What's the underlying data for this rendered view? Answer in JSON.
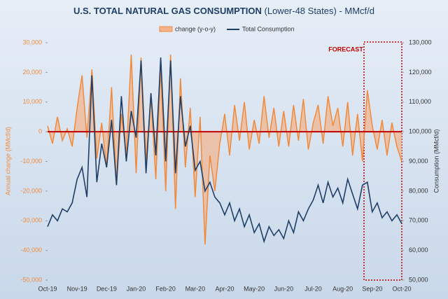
{
  "chart_data": {
    "type": "line",
    "title": "U.S. TOTAL  NATURAL GAS CONSUMPTION",
    "subtitle": "(Lower-48 States) - MMcf/d",
    "ylabel": "Annual change (MMcf/d)",
    "y2label": "Consumption (MMcf/d)",
    "annotation": "FORECAST",
    "categories": [
      "Oct-19",
      null,
      null,
      null,
      null,
      null,
      "Nov-19",
      null,
      null,
      null,
      null,
      null,
      "Dec-19",
      null,
      null,
      null,
      null,
      null,
      "Jan-20",
      null,
      null,
      null,
      null,
      null,
      "Feb-20",
      null,
      null,
      null,
      null,
      null,
      "Mar-20",
      null,
      null,
      null,
      null,
      null,
      "Apr-20",
      null,
      null,
      null,
      null,
      null,
      "May-20",
      null,
      null,
      null,
      null,
      null,
      "Jun-20",
      null,
      null,
      null,
      null,
      null,
      "Jul-20",
      null,
      null,
      null,
      null,
      null,
      "Aug-20",
      null,
      null,
      null,
      null,
      null,
      "Sep-20",
      null,
      null,
      null,
      null,
      null,
      "Oct-20"
    ],
    "series": [
      {
        "name": "change (y-o-y)",
        "color": "#f08a3c",
        "fill": "#f2b48a",
        "axis": "y",
        "values": [
          2000,
          -4000,
          5000,
          -3000,
          1000,
          -5000,
          8000,
          19000,
          -2000,
          21000,
          -9000,
          3000,
          -12000,
          15000,
          -18000,
          6000,
          -8000,
          26000,
          -14000,
          25000,
          -10000,
          12000,
          -16000,
          22000,
          -20000,
          26000,
          -26000,
          18000,
          -12000,
          8000,
          -22000,
          5000,
          -38000,
          -8000,
          -20000,
          -4000,
          6000,
          -8000,
          9000,
          -3000,
          10000,
          -6000,
          4000,
          -4000,
          12000,
          -2000,
          8000,
          -5000,
          7000,
          -5000,
          9000,
          -3000,
          11000,
          -6000,
          3000,
          9000,
          -4000,
          12000,
          2000,
          8000,
          -5000,
          10000,
          -8000,
          6000,
          -10000,
          14000,
          2000,
          -6000,
          4000,
          -8000,
          3000,
          -5000,
          -10000
        ]
      },
      {
        "name": "Total Consumption",
        "color": "#1f3f66",
        "axis": "y2",
        "values": [
          68000,
          72000,
          70000,
          74000,
          73000,
          76000,
          84000,
          88000,
          78000,
          119000,
          83000,
          96000,
          88000,
          104000,
          82000,
          112000,
          90000,
          107000,
          98000,
          124000,
          86000,
          113000,
          92000,
          125000,
          90000,
          124000,
          86000,
          112000,
          95000,
          102000,
          87000,
          90000,
          80000,
          83000,
          78000,
          76000,
          72000,
          76000,
          70000,
          74000,
          68000,
          72000,
          66000,
          69000,
          63000,
          68000,
          65000,
          67000,
          64000,
          70000,
          66000,
          73000,
          70000,
          74000,
          77000,
          82000,
          76000,
          83000,
          78000,
          81000,
          76000,
          84000,
          79000,
          74000,
          82000,
          83000,
          73000,
          76000,
          71000,
          73000,
          70000,
          72000,
          69000
        ]
      }
    ],
    "ylim": [
      -50000,
      30000
    ],
    "yticks": [
      {
        "value": -50000,
        "label": "-50,000"
      },
      {
        "value": -40000,
        "label": "-40,000"
      },
      {
        "value": -30000,
        "label": "-30,000"
      },
      {
        "value": -20000,
        "label": "-20,000"
      },
      {
        "value": -10000,
        "label": "-10,000"
      },
      0,
      {
        "value": 10000,
        "label": "10,000"
      },
      {
        "value": 20000,
        "label": "20,000"
      },
      {
        "value": 30000,
        "label": "30,000"
      }
    ],
    "y2lim": [
      50000,
      130000
    ],
    "y2ticks": [
      {
        "value": 50000,
        "label": "50,000"
      },
      {
        "value": 60000,
        "label": "60,000"
      },
      {
        "value": 70000,
        "label": "70,000"
      },
      {
        "value": 80000,
        "label": "80,000"
      },
      {
        "value": 90000,
        "label": "90,000"
      },
      {
        "value": 100000,
        "label": "100,000"
      },
      {
        "value": 110000,
        "label": "110,000"
      },
      {
        "value": 120000,
        "label": "120,000"
      },
      {
        "value": 130000,
        "label": "130,000"
      }
    ],
    "zero_line_color": "#c00000",
    "legend": "top"
  }
}
